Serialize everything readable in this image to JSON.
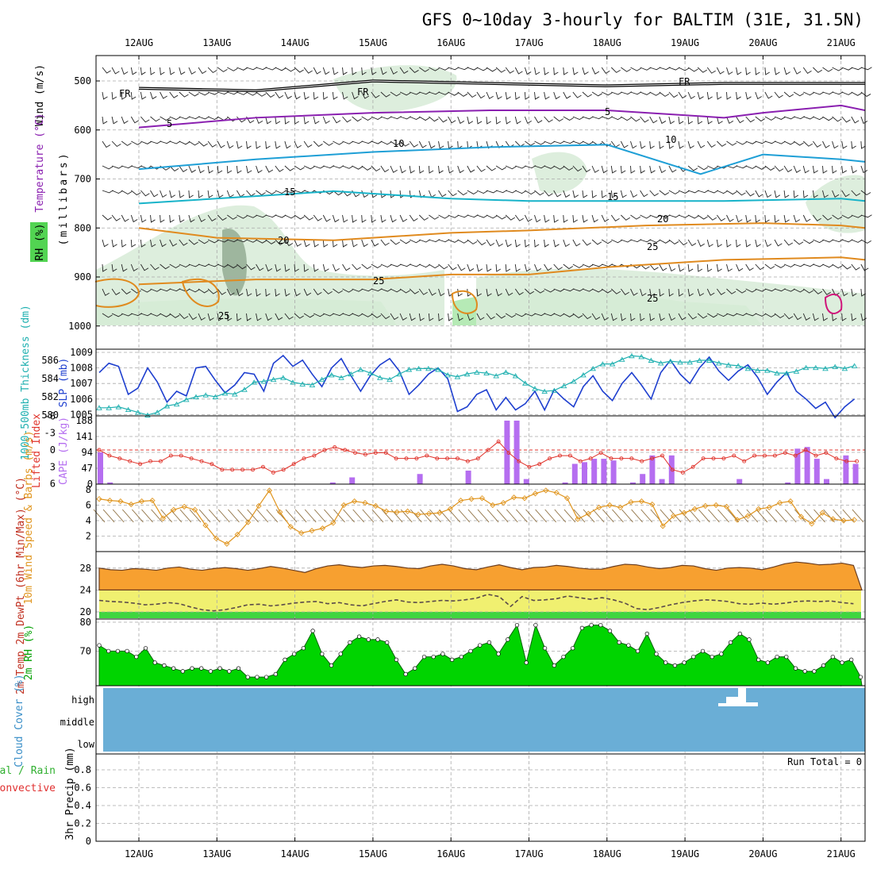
{
  "title": "GFS 0~10day 3-hourly for BALTIM (31E, 31.5N)",
  "colors": {
    "rh": "#3fcf3f",
    "temp_contour_cold": "#8a1fb0",
    "temp_contour_cool": "#1e9fd6",
    "temp_contour_mid": "#17b3c9",
    "temp_contour_warm": "#e08a1e",
    "freezing": "#000000",
    "slp": "#1e3fcf",
    "thickness": "#1fb0b0",
    "cape": "#b56ef0",
    "lifted_index": "#e0332b",
    "wind10m": "#e0951e",
    "cloud": "#6aaed6",
    "rh2m": "#00d400",
    "temp_fill": "#f7a030"
  },
  "x_day_labels": [
    "12AUG",
    "13AUG",
    "14AUG",
    "15AUG",
    "16AUG",
    "17AUG",
    "18AUG",
    "19AUG",
    "20AUG",
    "21AUG"
  ],
  "chart_data": [
    {
      "panel": "upper_air",
      "type": "heatmap",
      "ylabel_wind": "Wind (m/s)",
      "ylabel_temp": "Temperature (°C)",
      "ylabel_rh": "RH (%)",
      "ylabel_pressure": "(millibars)",
      "y_ticks": [
        "500",
        "600",
        "700",
        "800",
        "900",
        "1000"
      ],
      "ylim": [
        1020,
        460
      ],
      "contour_labels": [
        "FR",
        "FR",
        "FR",
        "5",
        "5",
        "10",
        "10",
        "10",
        "15",
        "15",
        "20",
        "20",
        "25",
        "25",
        "25",
        "25"
      ],
      "isotherms": [
        {
          "label": "5",
          "x": [
            0,
            1.5,
            3,
            4.5,
            6,
            7.5,
            8,
            9,
            9.9
          ],
          "y": [
            595,
            575,
            565,
            560,
            560,
            575,
            565,
            550,
            560
          ]
        },
        {
          "label": "10",
          "x": [
            0,
            1.5,
            3,
            4.5,
            6,
            7.2,
            8,
            9,
            9.9
          ],
          "y": [
            680,
            660,
            645,
            635,
            630,
            690,
            650,
            660,
            665
          ]
        },
        {
          "label": "15",
          "x": [
            0,
            1.5,
            2.5,
            4,
            5,
            6,
            7.5,
            9,
            9.9
          ],
          "y": [
            750,
            735,
            725,
            740,
            745,
            745,
            745,
            740,
            745
          ]
        },
        {
          "label": "20",
          "x": [
            0,
            1,
            2.5,
            4,
            5,
            6.5,
            8,
            9,
            9.9
          ],
          "y": [
            800,
            820,
            825,
            810,
            805,
            795,
            790,
            795,
            800
          ]
        },
        {
          "label": "25",
          "x": [
            0,
            1.5,
            3,
            4,
            5,
            6,
            7.5,
            9,
            9.9
          ],
          "y": [
            915,
            905,
            905,
            895,
            895,
            880,
            865,
            860,
            865
          ]
        }
      ],
      "freezing_level": {
        "label": "FR",
        "x": [
          0,
          1.5,
          3,
          4.5,
          6,
          7.5,
          9,
          9.9
        ],
        "y": [
          515,
          520,
          500,
          505,
          510,
          505,
          505,
          505
        ]
      }
    },
    {
      "panel": "slp_thickness",
      "type": "line",
      "ylabel_left": "1000-500mb Thickness (dm)",
      "ylabel_right": "SLP (mb)",
      "y_ticks_thickness": [
        "580",
        "582",
        "584",
        "586"
      ],
      "y_ticks_slp": [
        "1005",
        "1006",
        "1007",
        "1008",
        "1009"
      ],
      "series": [
        {
          "name": "SLP (mb)",
          "values": [
            1007.7,
            1008.3,
            1008.1,
            1006.3,
            1006.7,
            1008.0,
            1007.1,
            1005.8,
            1006.5,
            1006.2,
            1008.0,
            1008.1,
            1007.2,
            1006.4,
            1006.9,
            1007.7,
            1007.6,
            1006.5,
            1008.3,
            1008.8,
            1008.1,
            1008.5,
            1007.6,
            1006.8,
            1008.0,
            1008.6,
            1007.5,
            1006.5,
            1007.5,
            1008.2,
            1008.6,
            1007.8,
            1006.3,
            1006.9,
            1007.6,
            1008.0,
            1007.3,
            1005.2,
            1005.5,
            1006.3,
            1006.6,
            1005.3,
            1006.1,
            1005.3,
            1005.7,
            1006.5,
            1005.3,
            1006.6,
            1006.0,
            1005.5,
            1006.8,
            1007.5,
            1006.5,
            1005.9,
            1007.0,
            1007.7,
            1006.9,
            1006.0,
            1007.7,
            1008.5,
            1007.6,
            1007.0,
            1008.0,
            1008.7,
            1007.8,
            1007.2,
            1007.8,
            1008.2,
            1007.4,
            1006.3,
            1007.1,
            1007.7,
            1006.5,
            1006.0,
            1005.4,
            1005.8,
            1004.8,
            1005.5,
            1006.0
          ]
        },
        {
          "name": "1000-500mb Thickness (dm)",
          "values": [
            580.8,
            580.8,
            580.9,
            580.6,
            580.3,
            580.0,
            580.3,
            581.0,
            581.2,
            581.7,
            582.0,
            582.2,
            582.0,
            582.4,
            582.3,
            582.8,
            583.6,
            583.7,
            583.9,
            584.1,
            583.6,
            583.4,
            583.3,
            583.9,
            584.4,
            584.1,
            584.5,
            585.0,
            584.6,
            584.1,
            583.9,
            584.5,
            585.0,
            585.1,
            585.1,
            585.0,
            584.4,
            584.2,
            584.5,
            584.7,
            584.6,
            584.3,
            584.7,
            584.3,
            583.5,
            582.9,
            582.6,
            582.7,
            583.2,
            583.7,
            584.4,
            585.1,
            585.6,
            585.6,
            586.1,
            586.5,
            586.4,
            586.0,
            585.7,
            585.9,
            585.8,
            585.8,
            586.0,
            586.0,
            585.7,
            585.5,
            585.4,
            585.1,
            584.9,
            584.9,
            584.6,
            584.6,
            584.8,
            585.2,
            585.2,
            585.1,
            585.3,
            585.1,
            585.4
          ]
        }
      ]
    },
    {
      "panel": "cape_li",
      "type": "bar",
      "ylabel_left": "Lifted Index",
      "ylabel_right": "CAPE (J/kg)",
      "y_ticks_li": [
        "6",
        "3",
        "0",
        "-3",
        "-6"
      ],
      "y_ticks_cape": [
        "0",
        "47",
        "94",
        "141",
        "188"
      ],
      "series": [
        {
          "name": "CAPE (J/kg)",
          "values": [
            94,
            5,
            0,
            0,
            0,
            0,
            0,
            0,
            0,
            0,
            0,
            0,
            0,
            0,
            0,
            0,
            0,
            0,
            0,
            0,
            0,
            0,
            0,
            0,
            5,
            0,
            20,
            0,
            0,
            0,
            0,
            0,
            0,
            30,
            0,
            0,
            0,
            0,
            40,
            0,
            0,
            0,
            188,
            188,
            15,
            0,
            0,
            0,
            5,
            60,
            65,
            75,
            75,
            70,
            0,
            5,
            30,
            85,
            15,
            85,
            0,
            0,
            0,
            0,
            0,
            0,
            15,
            0,
            0,
            0,
            0,
            5,
            105,
            110,
            75,
            15,
            0,
            85,
            60
          ]
        },
        {
          "name": "Lifted Index",
          "values": [
            0,
            1,
            1.5,
            2,
            2.5,
            2,
            2,
            1,
            1,
            1.5,
            2,
            2.5,
            3.5,
            3.5,
            3.5,
            3.5,
            3,
            4,
            3.5,
            2.5,
            1.5,
            1,
            0,
            -0.5,
            0,
            0.5,
            0.8,
            0.5,
            0.5,
            1.5,
            1.5,
            1.5,
            1,
            1.5,
            1.5,
            1.5,
            2,
            1.5,
            0,
            -1.5,
            0.5,
            2,
            3,
            2.5,
            1.5,
            1,
            1,
            2,
            1.5,
            0.5,
            1.5,
            1.5,
            1.5,
            2,
            1.5,
            1,
            3.5,
            4,
            3,
            1.5,
            1.5,
            1.5,
            1,
            2,
            1,
            1,
            1,
            0.5,
            1,
            0,
            1,
            0.5,
            1.5,
            2,
            2
          ]
        }
      ]
    },
    {
      "panel": "wind10m",
      "type": "line",
      "ylabel": "10m Wind Speed & Barbs (m/s)",
      "y_ticks": [
        "2",
        "4",
        "6",
        "8"
      ],
      "ylim": [
        0,
        8.5
      ],
      "series": [
        {
          "name": "10m Wind Speed",
          "values": [
            6.8,
            6.6,
            6.5,
            6.1,
            6.5,
            6.6,
            4.3,
            5.4,
            5.8,
            5.4,
            3.4,
            1.7,
            1.0,
            2.2,
            3.8,
            5.9,
            7.9,
            5.1,
            3.2,
            2.4,
            2.7,
            3.0,
            3.7,
            6.0,
            6.5,
            6.3,
            5.9,
            5.2,
            5.1,
            5.2,
            4.8,
            4.9,
            5.0,
            5.5,
            6.6,
            6.8,
            6.9,
            6.0,
            6.3,
            7.0,
            6.9,
            7.5,
            7.9,
            7.6,
            6.9,
            4.2,
            4.9,
            5.7,
            6.0,
            5.7,
            6.4,
            6.5,
            6.1,
            3.3,
            4.6,
            5.0,
            5.5,
            5.9,
            6.0,
            5.8,
            4.1,
            4.6,
            5.5,
            5.7,
            6.3,
            6.5,
            4.5,
            3.6,
            5.0,
            4.2,
            4.0,
            4.1
          ]
        }
      ]
    },
    {
      "panel": "temp2m",
      "type": "area",
      "ylabel": "2m Temp 2m DewPt (6hr Min/Max) (°C)",
      "y_ticks": [
        "20",
        "24",
        "28"
      ],
      "ylim": [
        19.2,
        30.5
      ],
      "series": [
        {
          "name": "2m Temp",
          "values": [
            28.0,
            27.7,
            27.6,
            27.9,
            27.8,
            27.6,
            28.0,
            28.2,
            27.8,
            27.6,
            27.9,
            28.1,
            27.9,
            27.6,
            27.9,
            28.3,
            28.0,
            27.6,
            27.2,
            27.9,
            28.4,
            28.6,
            28.3,
            28.1,
            28.4,
            28.5,
            28.3,
            28.0,
            27.9,
            28.4,
            28.7,
            28.4,
            27.9,
            27.7,
            28.2,
            28.6,
            28.1,
            27.7,
            28.1,
            28.2,
            28.5,
            28.3,
            28.0,
            27.8,
            27.8,
            28.3,
            28.7,
            28.6,
            28.2,
            27.9,
            28.1,
            28.5,
            28.4,
            27.9,
            27.6,
            28.0,
            28.1,
            28.0,
            27.7,
            28.2,
            28.8,
            29.1,
            28.9,
            28.6,
            28.7,
            28.9,
            28.5
          ]
        },
        {
          "name": "2m DewPt",
          "values": [
            22.1,
            21.9,
            21.8,
            21.6,
            21.3,
            21.4,
            21.7,
            21.5,
            20.9,
            20.4,
            20.2,
            20.4,
            20.8,
            21.3,
            21.4,
            21.1,
            21.3,
            21.6,
            21.8,
            21.9,
            21.5,
            21.7,
            21.3,
            21.1,
            21.5,
            21.9,
            22.2,
            21.8,
            21.7,
            21.9,
            22.1,
            22.0,
            22.2,
            22.5,
            23.2,
            22.8,
            21.0,
            22.8,
            22.1,
            22.2,
            22.4,
            22.9,
            22.6,
            22.3,
            22.6,
            22.2,
            21.6,
            20.6,
            20.4,
            20.8,
            21.3,
            21.7,
            22.0,
            22.2,
            22.1,
            21.9,
            21.5,
            21.4,
            21.6,
            21.4,
            21.6,
            21.9,
            22.0,
            21.9,
            22.0,
            21.7,
            21.5
          ]
        }
      ]
    },
    {
      "panel": "rh2m",
      "type": "area",
      "ylabel": "2m RH (%)",
      "y_ticks": [
        "70",
        "80"
      ],
      "ylim": [
        58,
        80
      ],
      "series": [
        {
          "name": "2m RH",
          "values": [
            72,
            70,
            70,
            70,
            68,
            71,
            66,
            65,
            64,
            63,
            64,
            64,
            63,
            64,
            63,
            64,
            61,
            61,
            61,
            62,
            67,
            69,
            71,
            77,
            69,
            65,
            69,
            73,
            75,
            74,
            74,
            73,
            67,
            62,
            64,
            68,
            68,
            69,
            67,
            68,
            70,
            72,
            73,
            69,
            74,
            79,
            66,
            79,
            71,
            65,
            68,
            71,
            78,
            79,
            79,
            77,
            73,
            72,
            70,
            76,
            69,
            66,
            65,
            66,
            68,
            70,
            68,
            69,
            73,
            76,
            74,
            67,
            66,
            68,
            68,
            64,
            63,
            63,
            65,
            68,
            66,
            67,
            61
          ]
        }
      ]
    },
    {
      "panel": "cloud_cover",
      "type": "heatmap",
      "ylabel": "Cloud Cover (%)",
      "levels": [
        "high",
        "middle",
        "low"
      ]
    },
    {
      "panel": "precip",
      "type": "bar",
      "ylabel_total": "Total / Rain",
      "ylabel_conv": "Convective",
      "ylabel_precip": "3hr Precip (mm)",
      "y_ticks": [
        "0",
        "0.2",
        "0.4",
        "0.6",
        "0.8"
      ],
      "ylim": [
        0,
        0.92
      ],
      "run_total_text": "Run Total = 0",
      "series": [
        {
          "name": "Total / Rain",
          "values": [
            0,
            0,
            0,
            0,
            0,
            0,
            0,
            0,
            0,
            0
          ]
        }
      ]
    }
  ]
}
